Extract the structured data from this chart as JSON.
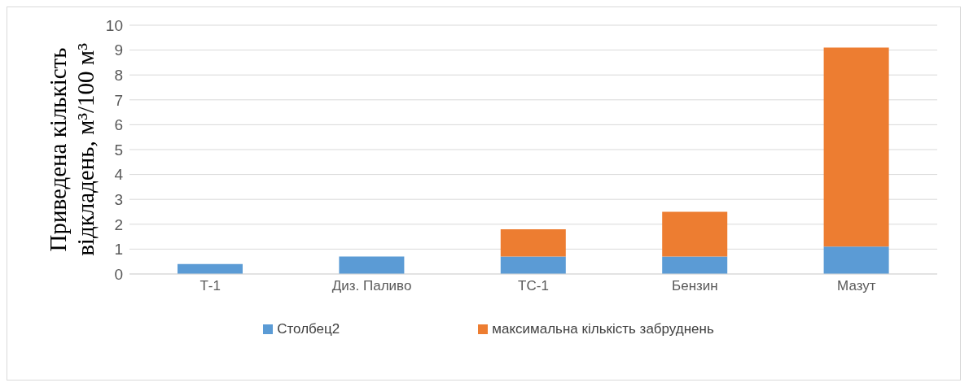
{
  "chart_data": {
    "type": "bar",
    "stacked": true,
    "ylabel": "Приведена кількість відкладень, м³/100 м³",
    "categories": [
      "Т-1",
      "Диз. Паливо",
      "ТС-1",
      "Бензин",
      "Мазут"
    ],
    "series": [
      {
        "name": "Столбец2",
        "color": "#5b9bd5",
        "values": [
          0.4,
          0.7,
          0.7,
          0.7,
          1.1
        ]
      },
      {
        "name": "максимальна кількість забруднень",
        "color": "#ed7d31",
        "values": [
          null,
          null,
          1.1,
          1.8,
          8.0
        ]
      }
    ],
    "ylim": [
      0,
      10
    ],
    "yticks": [
      0,
      1,
      2,
      3,
      4,
      5,
      6,
      7,
      8,
      9,
      10
    ],
    "grid": "y",
    "legend": "bottom"
  }
}
